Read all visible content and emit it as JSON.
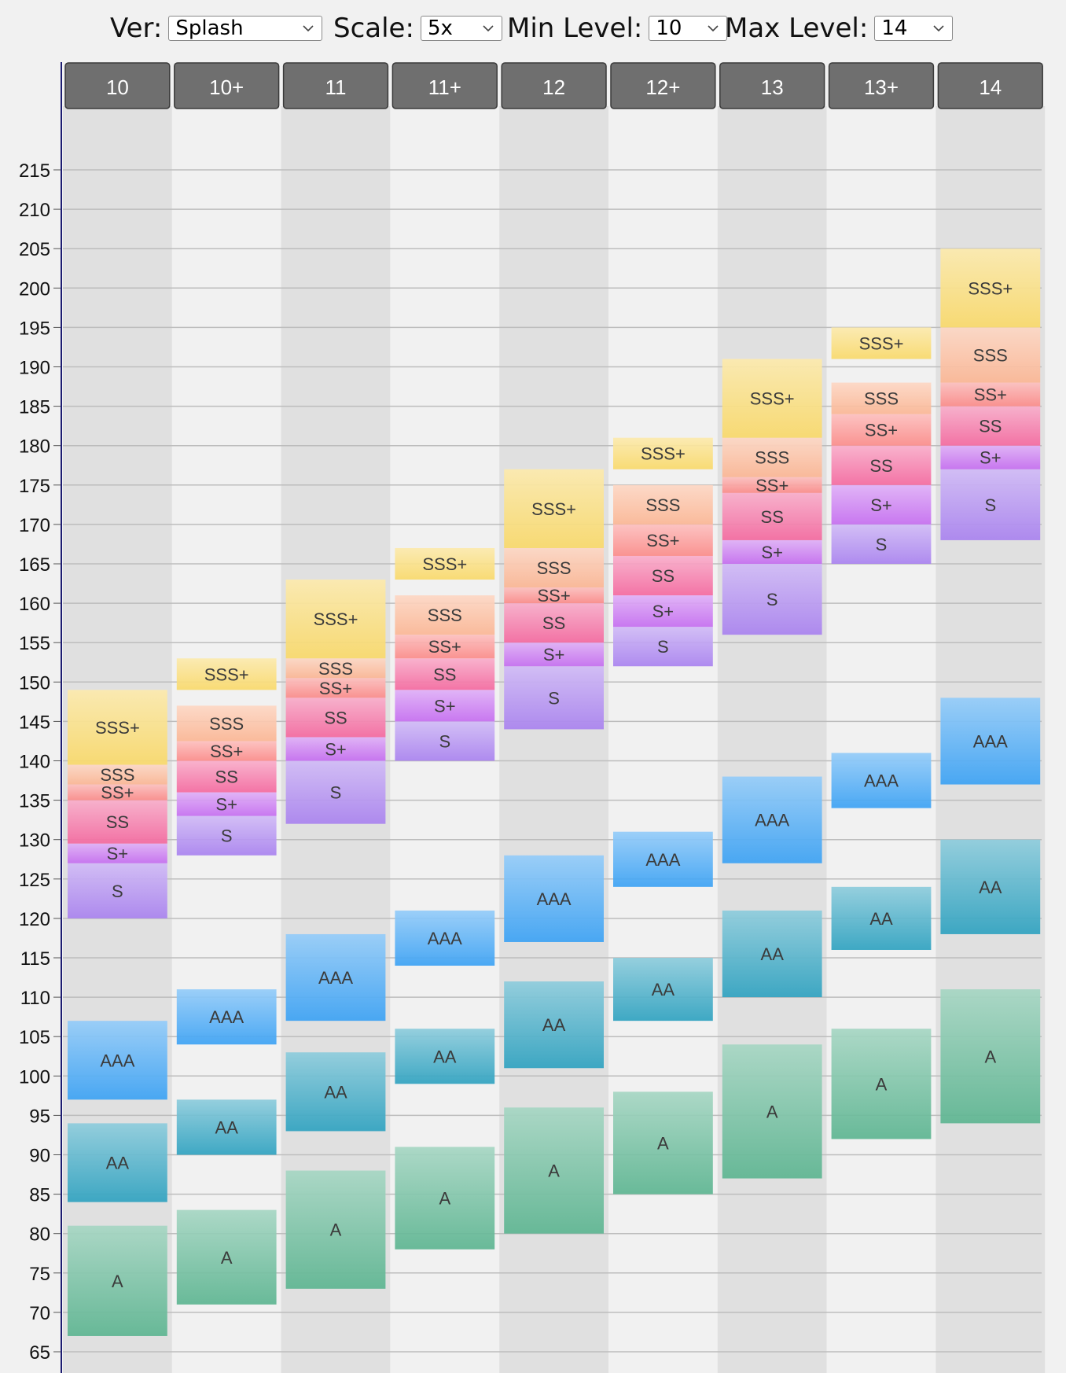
{
  "controls": {
    "ver": {
      "label": "Ver:",
      "value": "Splash"
    },
    "scale": {
      "label": "Scale:",
      "value": "5x"
    },
    "min_level": {
      "label": "Min Level:",
      "value": "10"
    },
    "max_level": {
      "label": "Max Level:",
      "value": "14"
    }
  },
  "colors": {
    "A": "#5db591",
    "AA": "#2fa2c0",
    "AAA": "#3ca2f4",
    "S": "#a982ef",
    "S+": "#c56df0",
    "SS": "#f4699f",
    "SS+": "#fb8b89",
    "SSS": "#fbb694",
    "SSS+": "#f9d96a",
    "header": "#6f6f6f",
    "header_text": "#ffffff",
    "col_dark": "#e0e0e0",
    "col_light": "#f1f1f1",
    "grid": "#bdbdbd"
  },
  "chart_data": {
    "type": "range-bar",
    "title": "",
    "ylim": [
      62,
      225
    ],
    "yticks": [
      65,
      70,
      75,
      80,
      85,
      90,
      95,
      100,
      105,
      110,
      115,
      120,
      125,
      130,
      135,
      140,
      145,
      150,
      155,
      160,
      165,
      170,
      175,
      180,
      185,
      190,
      195,
      200,
      205,
      210,
      215
    ],
    "grid": true,
    "categories": [
      "10",
      "10+",
      "11",
      "11+",
      "12",
      "12+",
      "13",
      "13+",
      "14"
    ],
    "columns": [
      {
        "level": "10",
        "bars": [
          {
            "rank": "A",
            "low": 67,
            "high": 81
          },
          {
            "rank": "AA",
            "low": 84,
            "high": 94
          },
          {
            "rank": "AAA",
            "low": 97,
            "high": 107
          },
          {
            "group": "S",
            "low": 120,
            "high": 149,
            "ranks": [
              {
                "rank": "S",
                "low": 120,
                "high": 127
              },
              {
                "rank": "S+",
                "low": 127,
                "high": 129.5
              },
              {
                "rank": "SS",
                "low": 129.5,
                "high": 135
              },
              {
                "rank": "SS+",
                "low": 135,
                "high": 137
              },
              {
                "rank": "SSS",
                "low": 137,
                "high": 139.5
              },
              {
                "rank": "SSS+",
                "low": 139.5,
                "high": 149
              }
            ]
          }
        ]
      },
      {
        "level": "10+",
        "bars": [
          {
            "rank": "A",
            "low": 71,
            "high": 83
          },
          {
            "rank": "AA",
            "low": 90,
            "high": 97
          },
          {
            "rank": "AAA",
            "low": 104,
            "high": 111
          },
          {
            "group": "S",
            "low": 128,
            "high": 147,
            "ranks": [
              {
                "rank": "S",
                "low": 128,
                "high": 133
              },
              {
                "rank": "S+",
                "low": 133,
                "high": 136
              },
              {
                "rank": "SS",
                "low": 136,
                "high": 140
              },
              {
                "rank": "SS+",
                "low": 140,
                "high": 142.5
              },
              {
                "rank": "SSS",
                "low": 142.5,
                "high": 147
              }
            ]
          },
          {
            "rank": "SSS+",
            "low": 149,
            "high": 153
          }
        ]
      },
      {
        "level": "11",
        "bars": [
          {
            "rank": "A",
            "low": 73,
            "high": 88
          },
          {
            "rank": "AA",
            "low": 93,
            "high": 103
          },
          {
            "rank": "AAA",
            "low": 107,
            "high": 118
          },
          {
            "group": "S",
            "low": 132,
            "high": 163,
            "ranks": [
              {
                "rank": "S",
                "low": 132,
                "high": 140
              },
              {
                "rank": "S+",
                "low": 140,
                "high": 143
              },
              {
                "rank": "SS",
                "low": 143,
                "high": 148
              },
              {
                "rank": "SS+",
                "low": 148,
                "high": 150.5
              },
              {
                "rank": "SSS",
                "low": 150.5,
                "high": 153
              },
              {
                "rank": "SSS+",
                "low": 153,
                "high": 163
              }
            ]
          }
        ]
      },
      {
        "level": "11+",
        "bars": [
          {
            "rank": "A",
            "low": 78,
            "high": 91
          },
          {
            "rank": "AA",
            "low": 99,
            "high": 106
          },
          {
            "rank": "AAA",
            "low": 114,
            "high": 121
          },
          {
            "group": "S",
            "low": 140,
            "high": 161,
            "ranks": [
              {
                "rank": "S",
                "low": 140,
                "high": 145
              },
              {
                "rank": "S+",
                "low": 145,
                "high": 149
              },
              {
                "rank": "SS",
                "low": 149,
                "high": 153
              },
              {
                "rank": "SS+",
                "low": 153,
                "high": 156
              },
              {
                "rank": "SSS",
                "low": 156,
                "high": 161
              }
            ]
          },
          {
            "rank": "SSS+",
            "low": 163,
            "high": 167
          }
        ]
      },
      {
        "level": "12",
        "bars": [
          {
            "rank": "A",
            "low": 80,
            "high": 96
          },
          {
            "rank": "AA",
            "low": 101,
            "high": 112
          },
          {
            "rank": "AAA",
            "low": 117,
            "high": 128
          },
          {
            "group": "S",
            "low": 144,
            "high": 177,
            "ranks": [
              {
                "rank": "S",
                "low": 144,
                "high": 152
              },
              {
                "rank": "S+",
                "low": 152,
                "high": 155
              },
              {
                "rank": "SS",
                "low": 155,
                "high": 160
              },
              {
                "rank": "SS+",
                "low": 160,
                "high": 162
              },
              {
                "rank": "SSS",
                "low": 162,
                "high": 167
              },
              {
                "rank": "SSS+",
                "low": 167,
                "high": 177
              }
            ]
          }
        ]
      },
      {
        "level": "12+",
        "bars": [
          {
            "rank": "A",
            "low": 85,
            "high": 98
          },
          {
            "rank": "AA",
            "low": 107,
            "high": 115
          },
          {
            "rank": "AAA",
            "low": 124,
            "high": 131
          },
          {
            "group": "S",
            "low": 152,
            "high": 175,
            "ranks": [
              {
                "rank": "S",
                "low": 152,
                "high": 157
              },
              {
                "rank": "S+",
                "low": 157,
                "high": 161
              },
              {
                "rank": "SS",
                "low": 161,
                "high": 166
              },
              {
                "rank": "SS+",
                "low": 166,
                "high": 170
              },
              {
                "rank": "SSS",
                "low": 170,
                "high": 175
              }
            ]
          },
          {
            "rank": "SSS+",
            "low": 177,
            "high": 181
          }
        ]
      },
      {
        "level": "13",
        "bars": [
          {
            "rank": "A",
            "low": 87,
            "high": 104
          },
          {
            "rank": "AA",
            "low": 110,
            "high": 121
          },
          {
            "rank": "AAA",
            "low": 127,
            "high": 138
          },
          {
            "group": "S",
            "low": 156,
            "high": 191,
            "ranks": [
              {
                "rank": "S",
                "low": 156,
                "high": 165
              },
              {
                "rank": "S+",
                "low": 165,
                "high": 168
              },
              {
                "rank": "SS",
                "low": 168,
                "high": 174
              },
              {
                "rank": "SS+",
                "low": 174,
                "high": 176
              },
              {
                "rank": "SSS",
                "low": 176,
                "high": 181
              },
              {
                "rank": "SSS+",
                "low": 181,
                "high": 191
              }
            ]
          }
        ]
      },
      {
        "level": "13+",
        "bars": [
          {
            "rank": "A",
            "low": 92,
            "high": 106
          },
          {
            "rank": "AA",
            "low": 116,
            "high": 124
          },
          {
            "rank": "AAA",
            "low": 134,
            "high": 141
          },
          {
            "group": "S",
            "low": 165,
            "high": 188,
            "ranks": [
              {
                "rank": "S",
                "low": 165,
                "high": 170
              },
              {
                "rank": "S+",
                "low": 170,
                "high": 175
              },
              {
                "rank": "SS",
                "low": 175,
                "high": 180
              },
              {
                "rank": "SS+",
                "low": 180,
                "high": 184
              },
              {
                "rank": "SSS",
                "low": 184,
                "high": 188
              }
            ]
          },
          {
            "rank": "SSS+",
            "low": 191,
            "high": 195
          }
        ]
      },
      {
        "level": "14",
        "bars": [
          {
            "rank": "A",
            "low": 94,
            "high": 111
          },
          {
            "rank": "AA",
            "low": 118,
            "high": 130
          },
          {
            "rank": "AAA",
            "low": 137,
            "high": 148
          },
          {
            "group": "S",
            "low": 168,
            "high": 205,
            "ranks": [
              {
                "rank": "S",
                "low": 168,
                "high": 177
              },
              {
                "rank": "S+",
                "low": 177,
                "high": 180
              },
              {
                "rank": "SS",
                "low": 180,
                "high": 185
              },
              {
                "rank": "SS+",
                "low": 185,
                "high": 188
              },
              {
                "rank": "SSS",
                "low": 188,
                "high": 195
              },
              {
                "rank": "SSS+",
                "low": 195,
                "high": 205
              }
            ]
          }
        ]
      }
    ]
  }
}
